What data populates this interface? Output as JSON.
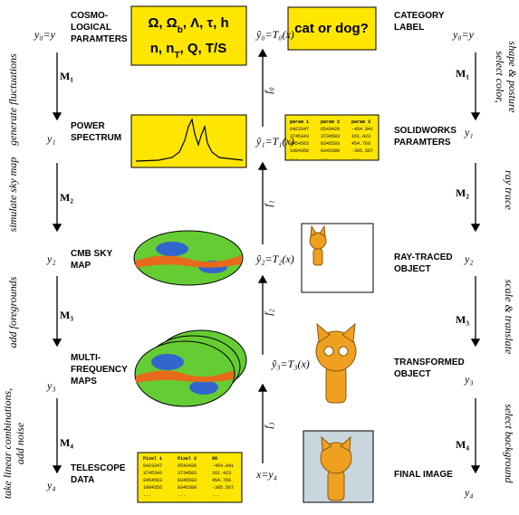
{
  "left": {
    "actions": [
      "generate fluctuations",
      "simulate sky map",
      "add foregrounds",
      "take linear combinations,",
      "add noise"
    ],
    "maps": [
      "M₁",
      "M₂",
      "M₃",
      "M₄"
    ],
    "vars": [
      "y₀=y",
      "y₁",
      "y₂",
      "y₃",
      "y₄"
    ],
    "labels": [
      [
        "COSMO-",
        "LOGICAL",
        "PARAMTERS"
      ],
      [
        "POWER",
        "SPECTRUM"
      ],
      [
        "CMB SKY",
        "MAP"
      ],
      [
        "MULTI-",
        "FREQUENCY",
        "MAPS"
      ],
      [
        "TELESCOPE",
        "DATA"
      ]
    ],
    "params": [
      [
        "Ω, Ω",
        "b",
        ", Λ, τ, h"
      ],
      [
        "n, n",
        "T",
        ", Q, T/S"
      ]
    ],
    "table": {
      "header": [
        "Pixel 1",
        "Pixel 2",
        "88"
      ],
      "rows": [
        [
          "6423347",
          "6543428",
          "-454.841"
        ],
        [
          "3745343",
          "3734583",
          "161.423"
        ],
        [
          "8454563",
          "8345593",
          "454.766"
        ],
        [
          "1004356",
          "8345388",
          "-305.567"
        ],
        [
          "...",
          "...",
          "..."
        ]
      ]
    }
  },
  "middle": {
    "estimates": [
      "ŷ₀=T₀(x)",
      "ŷ₁=T₁(x)",
      "ŷ₂=T₂(x)",
      "ŷ₃=T₃(x)",
      "x=y₄"
    ],
    "functions": [
      "f₀",
      "f₁",
      "f₂",
      "f₃"
    ]
  },
  "right": {
    "question": "cat or dog?",
    "labels": [
      [
        "CATEGORY",
        "LABEL"
      ],
      [
        "SOLIDWORKS",
        "PARAMTERS"
      ],
      [
        "RAY-TRACED",
        "OBJECT"
      ],
      [
        "TRANSFORMED",
        "OBJECT"
      ],
      [
        "FINAL IMAGE"
      ]
    ],
    "vars": [
      "y₀=y",
      "y₁",
      "y₂",
      "y₃",
      "y₄"
    ],
    "maps": [
      "M₁",
      "M₂",
      "M₃",
      "M₄"
    ],
    "actions": [
      [
        "select color,",
        "shape & posture"
      ],
      [
        "ray trace"
      ],
      [
        "scale & translate"
      ],
      [
        "select background"
      ]
    ],
    "table": {
      "header": [
        "param 1",
        "param 2",
        "param 3"
      ],
      "rows": [
        [
          "6423347",
          "6543428",
          "-454.841"
        ],
        [
          "3745343",
          "3734583",
          "161.423"
        ],
        [
          "8454563",
          "8345593",
          "454.766"
        ],
        [
          "1004356",
          "8345388",
          "-305.567"
        ],
        [
          "...",
          "...",
          "..."
        ]
      ]
    }
  }
}
